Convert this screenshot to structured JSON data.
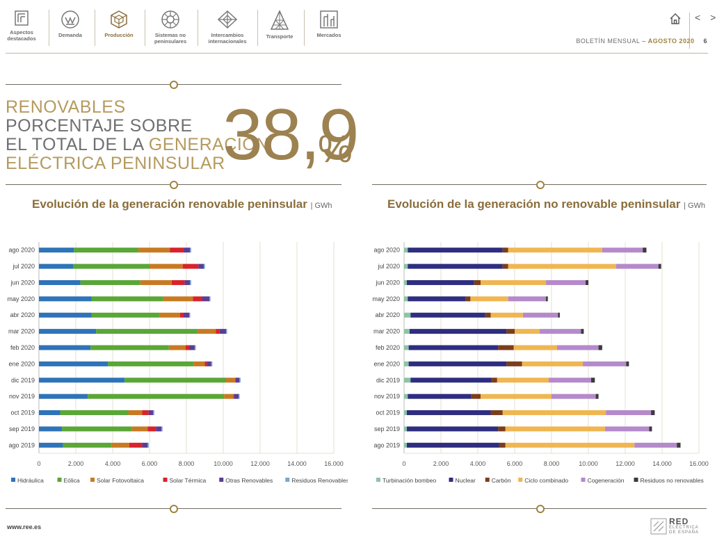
{
  "nav": {
    "items": [
      {
        "label1": "Aspectos",
        "label2": "destacados",
        "icon": "document-icon"
      },
      {
        "label1": "Demanda",
        "label2": "",
        "icon": "demand-icon"
      },
      {
        "label1": "Producción",
        "label2": "",
        "icon": "production-icon"
      },
      {
        "label1": "Sistemas no",
        "label2": "peninsulares",
        "icon": "islands-icon"
      },
      {
        "label1": "Intercambios",
        "label2": "internacionales",
        "icon": "exchange-icon"
      },
      {
        "label1": "Transporte",
        "label2": "",
        "icon": "tower-icon"
      },
      {
        "label1": "Mercados",
        "label2": "",
        "icon": "market-icon"
      }
    ],
    "bulletin_label": "BOLETÍN MENSUAL",
    "bulletin_sep": "–",
    "bulletin_month": "AGOSTO 2020",
    "page_number": "6",
    "nav_arrows": "< >"
  },
  "headline": {
    "line1": "RENOVABLES",
    "line2": "PORCENTAJE SOBRE",
    "line3a": "EL TOTAL DE LA ",
    "line3b": "GENERACIÓN",
    "line4": "ELÉCTRICA PENINSULAR",
    "value": "38,9",
    "pct": "%"
  },
  "footer": {
    "url": "www.ree.es",
    "logo1": "RED",
    "logo2": "ELÉCTRICA",
    "logo3": "DE ESPAÑA"
  },
  "chart_data": [
    {
      "type": "bar",
      "orientation": "horizontal",
      "stacked": true,
      "title": "Evolución de la generación renovable peninsular",
      "unit": "| GWh",
      "categories": [
        "ago 2020",
        "jul 2020",
        "jun 2020",
        "may 2020",
        "abr 2020",
        "mar 2020",
        "feb 2020",
        "ene 2020",
        "dic 2019",
        "nov 2019",
        "oct 2019",
        "sep 2019",
        "ago 2019"
      ],
      "xlim": [
        0,
        16000
      ],
      "xticks": [
        "0",
        "2.000",
        "4.000",
        "6.000",
        "8.000",
        "10.000",
        "12.000",
        "14.000",
        "16.000"
      ],
      "grid": true,
      "legend_position": "bottom",
      "series": [
        {
          "name": "Hidráulica",
          "color": "#2f73b8",
          "values": [
            1900,
            1850,
            2250,
            2850,
            2850,
            3100,
            2800,
            3750,
            4650,
            2650,
            1150,
            1250,
            1300
          ]
        },
        {
          "name": "Eólica",
          "color": "#5aa637",
          "values": [
            3500,
            4150,
            3250,
            3900,
            3700,
            5500,
            4250,
            4650,
            5500,
            7400,
            3700,
            3800,
            2650
          ]
        },
        {
          "name": "Solar Fotovoltaica",
          "color": "#c87a22",
          "values": [
            1700,
            1800,
            1700,
            1600,
            1100,
            1000,
            900,
            600,
            500,
            500,
            750,
            850,
            950
          ]
        },
        {
          "name": "Solar Térmica",
          "color": "#d8232a",
          "values": [
            750,
            850,
            700,
            500,
            200,
            200,
            200,
            100,
            30,
            30,
            350,
            450,
            700
          ]
        },
        {
          "name": "Otras Renovables",
          "color": "#5b3d92",
          "values": [
            350,
            300,
            300,
            400,
            300,
            350,
            300,
            250,
            200,
            250,
            250,
            300,
            300
          ]
        },
        {
          "name": "Residuos Renovables",
          "color": "#7aa6d8",
          "values": [
            60,
            60,
            60,
            60,
            60,
            60,
            60,
            60,
            60,
            60,
            60,
            60,
            60
          ]
        }
      ]
    },
    {
      "type": "bar",
      "orientation": "horizontal",
      "stacked": true,
      "title": "Evolución de la generación no renovable peninsular",
      "unit": "| GWh",
      "categories": [
        "ago 2020",
        "jul 2020",
        "jun 2020",
        "may 2020",
        "abr 2020",
        "mar 2020",
        "feb 2020",
        "ene 2020",
        "dic 2019",
        "nov 2019",
        "oct 2019",
        "sep 2019",
        "ago 2019"
      ],
      "xlim": [
        0,
        16000
      ],
      "xticks": [
        "0",
        "2.000",
        "4.000",
        "6.000",
        "8.000",
        "10.000",
        "12.000",
        "14.000",
        "16.000"
      ],
      "grid": true,
      "legend_position": "bottom",
      "series": [
        {
          "name": "Turbinación bombeo",
          "color": "#8dc4a5",
          "values": [
            200,
            200,
            150,
            200,
            350,
            300,
            250,
            250,
            350,
            200,
            150,
            150,
            150
          ]
        },
        {
          "name": "Nuclear",
          "color": "#2e2d7f",
          "values": [
            5150,
            5150,
            3650,
            3150,
            4050,
            5250,
            4850,
            5300,
            4400,
            3450,
            4550,
            4950,
            5000
          ]
        },
        {
          "name": "Carbón",
          "color": "#7a3e1c",
          "values": [
            300,
            300,
            350,
            250,
            300,
            450,
            850,
            850,
            300,
            500,
            650,
            400,
            350
          ]
        },
        {
          "name": "Ciclo combinado",
          "color": "#efb651",
          "values": [
            5100,
            5850,
            3550,
            2050,
            1750,
            1350,
            2350,
            3300,
            2800,
            3850,
            5600,
            5400,
            7000
          ]
        },
        {
          "name": "Cogeneración",
          "color": "#b48acb",
          "values": [
            2200,
            2300,
            2150,
            2050,
            1900,
            2250,
            2250,
            2350,
            2300,
            2400,
            2450,
            2400,
            2300
          ]
        },
        {
          "name": "Residuos no renovables",
          "color": "#3b3b3b",
          "values": [
            200,
            150,
            150,
            100,
            100,
            150,
            200,
            150,
            200,
            150,
            200,
            150,
            200
          ]
        }
      ]
    }
  ]
}
